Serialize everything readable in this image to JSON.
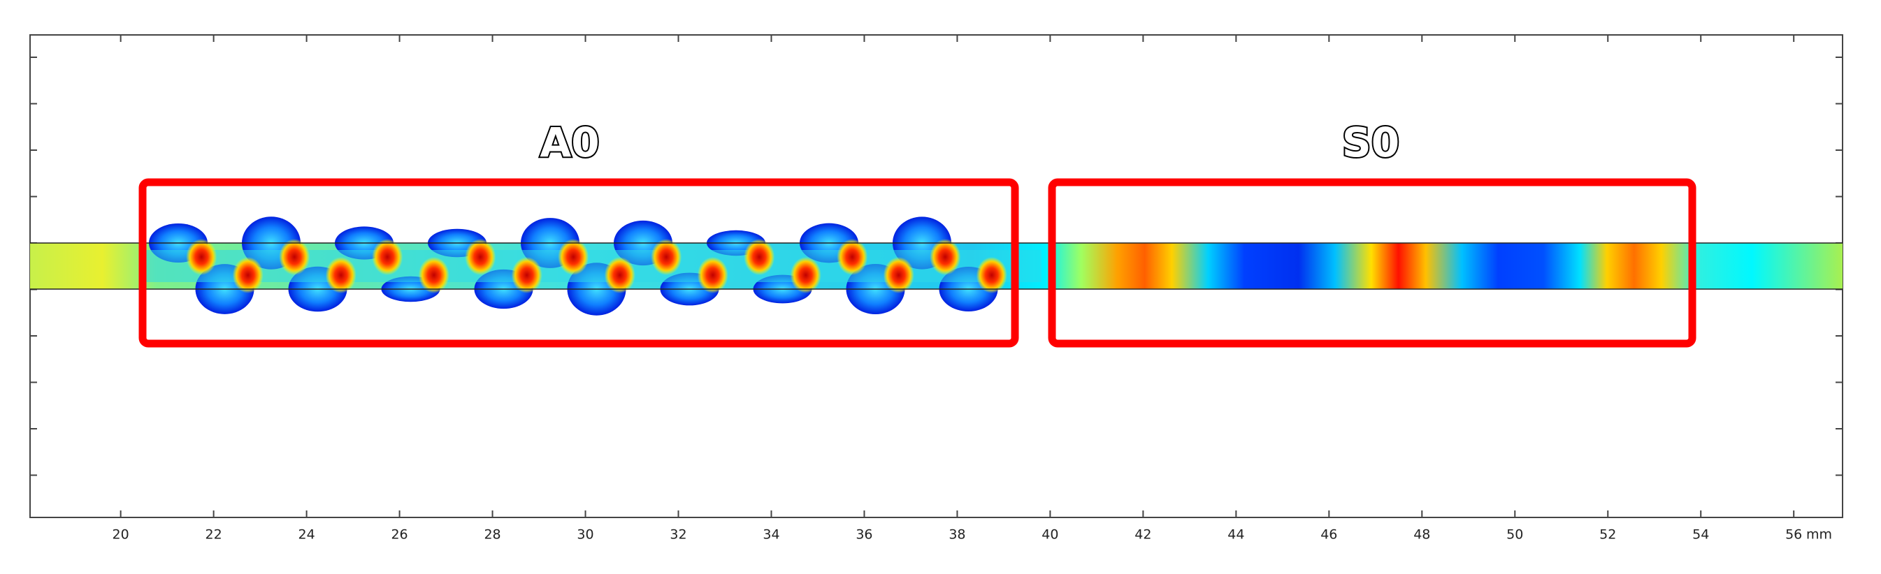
{
  "chart_data": {
    "type": "field",
    "annotations": [
      "A0",
      "S0"
    ],
    "x_unit": "mm",
    "xlim": [
      18.05,
      57.05
    ],
    "xticks": [
      20,
      22,
      24,
      26,
      28,
      30,
      32,
      34,
      36,
      38,
      40,
      42,
      44,
      46,
      48,
      50,
      52,
      54,
      56
    ]
  }
}
